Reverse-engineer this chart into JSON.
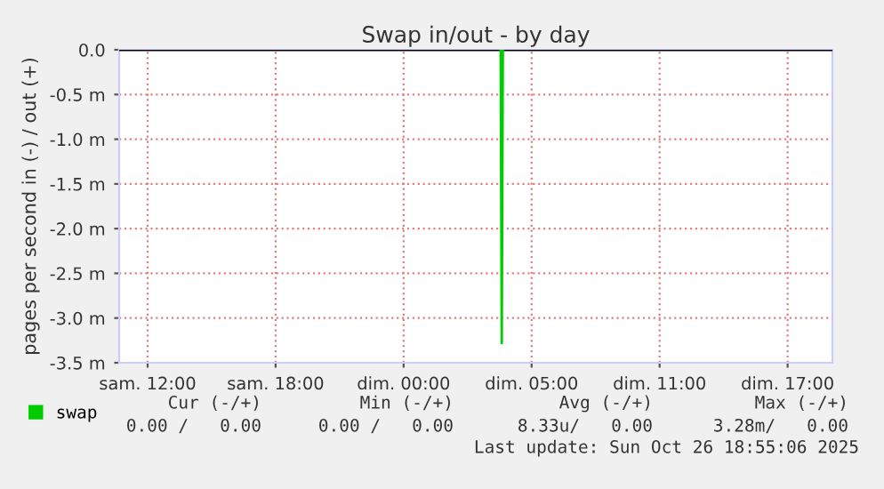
{
  "chart_data": {
    "type": "line",
    "title": "Swap in/out - by day",
    "ylabel": "pages per second in (-) / out (+)",
    "x": [
      "2025-10-26T02:33",
      "2025-10-26T02:36",
      "2025-10-26T02:39"
    ],
    "series": [
      {
        "name": "swap",
        "color": "#00cc00",
        "values": [
          0,
          -3.28,
          0
        ]
      }
    ],
    "xlim": [
      "2025-10-25T08:40",
      "2025-10-26T18:06"
    ],
    "xticks": [
      {
        "value": "2025-10-25T10:00",
        "label": "sam. 12:00"
      },
      {
        "value": "2025-10-25T16:00",
        "label": "sam. 18:00"
      },
      {
        "value": "2025-10-25T22:00",
        "label": "dim. 00:00"
      },
      {
        "value": "2025-10-26T04:00",
        "label": "dim. 05:00"
      },
      {
        "value": "2025-10-26T10:00",
        "label": "dim. 11:00"
      },
      {
        "value": "2025-10-26T16:00",
        "label": "dim. 17:00"
      }
    ],
    "ylim": [
      -3.5,
      0
    ],
    "yticks": [
      {
        "value": 0,
        "label": "0.0"
      },
      {
        "value": -0.5,
        "label": "-0.5 m"
      },
      {
        "value": -1.0,
        "label": "-1.0 m"
      },
      {
        "value": -1.5,
        "label": "-1.5 m"
      },
      {
        "value": -2.0,
        "label": "-2.0 m"
      },
      {
        "value": -2.5,
        "label": "-2.5 m"
      },
      {
        "value": -3.0,
        "label": "-3.0 m"
      },
      {
        "value": -3.5,
        "label": "-3.5 m"
      }
    ],
    "ref_lines": [
      {
        "axis": "y",
        "value": 0,
        "color": "#000000"
      }
    ],
    "grid": true,
    "legend": "bottom left",
    "marker": "none",
    "line_style": "solid",
    "annotations": [
      "Cur (-/+)",
      "Min (-/+)",
      "Avg (-/+)",
      "Max (-/+)",
      "0.00 /   0.00",
      "0.00 /   0.00",
      "8.33u/   0.00",
      "3.28m/   0.00",
      "Last update: Sun Oct 26 18:55:06 2025"
    ]
  }
}
